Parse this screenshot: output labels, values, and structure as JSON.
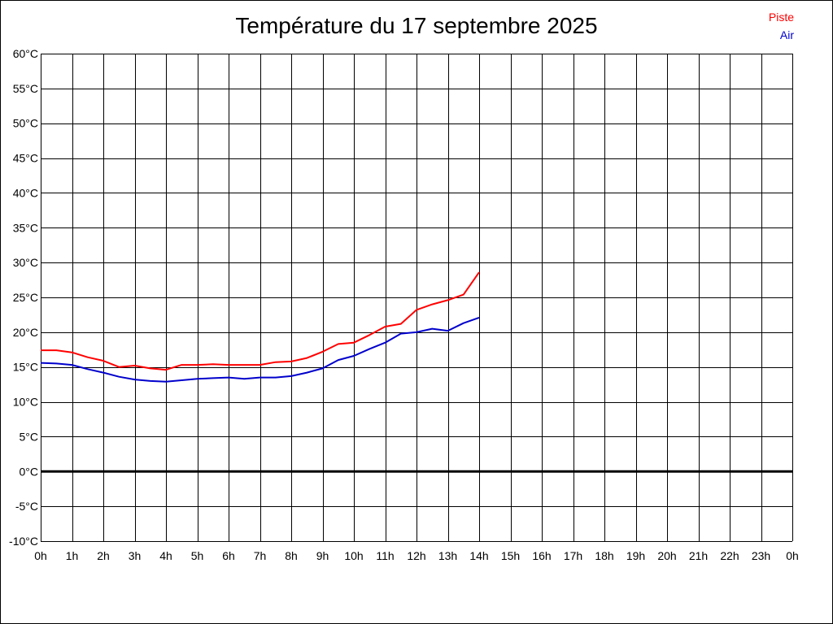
{
  "chart_data": {
    "type": "line",
    "title": "Température du 17 septembre 2025",
    "xlabel": "",
    "ylabel": "",
    "x_ticks": [
      "0h",
      "1h",
      "2h",
      "3h",
      "4h",
      "5h",
      "6h",
      "7h",
      "8h",
      "9h",
      "10h",
      "11h",
      "12h",
      "13h",
      "14h",
      "15h",
      "16h",
      "17h",
      "18h",
      "19h",
      "20h",
      "21h",
      "22h",
      "23h",
      "0h"
    ],
    "y_ticks": [
      "60°C",
      "55°C",
      "50°C",
      "45°C",
      "40°C",
      "35°C",
      "30°C",
      "25°C",
      "20°C",
      "15°C",
      "10°C",
      "5°C",
      "0°C",
      "-5°C",
      "-10°C"
    ],
    "xlim": [
      0,
      24
    ],
    "ylim": [
      -10,
      60
    ],
    "grid": true,
    "zero_line": true,
    "legend_position": "top-right",
    "x": [
      0,
      0.5,
      1,
      1.5,
      2,
      2.5,
      3,
      3.5,
      4,
      4.5,
      5,
      5.5,
      6,
      6.5,
      7,
      7.5,
      8,
      8.5,
      9,
      9.5,
      10,
      10.5,
      11,
      11.5,
      12,
      12.5,
      13,
      13.5,
      14
    ],
    "series": [
      {
        "name": "Piste",
        "color": "#ff0000",
        "values": [
          17.4,
          17.4,
          17.1,
          16.4,
          15.9,
          15.0,
          15.2,
          14.8,
          14.6,
          15.3,
          15.3,
          15.4,
          15.3,
          15.3,
          15.3,
          15.7,
          15.8,
          16.3,
          17.2,
          18.3,
          18.5,
          19.6,
          20.8,
          21.2,
          23.2,
          24.0,
          24.6,
          25.4,
          28.6
        ]
      },
      {
        "name": "Air",
        "color": "#0000cc",
        "values": [
          15.6,
          15.5,
          15.3,
          14.7,
          14.2,
          13.6,
          13.2,
          13.0,
          12.9,
          13.1,
          13.3,
          13.4,
          13.5,
          13.3,
          13.5,
          13.5,
          13.7,
          14.2,
          14.8,
          16.0,
          16.6,
          17.6,
          18.5,
          19.8,
          20.0,
          20.5,
          20.2,
          21.3,
          22.1
        ]
      }
    ]
  }
}
